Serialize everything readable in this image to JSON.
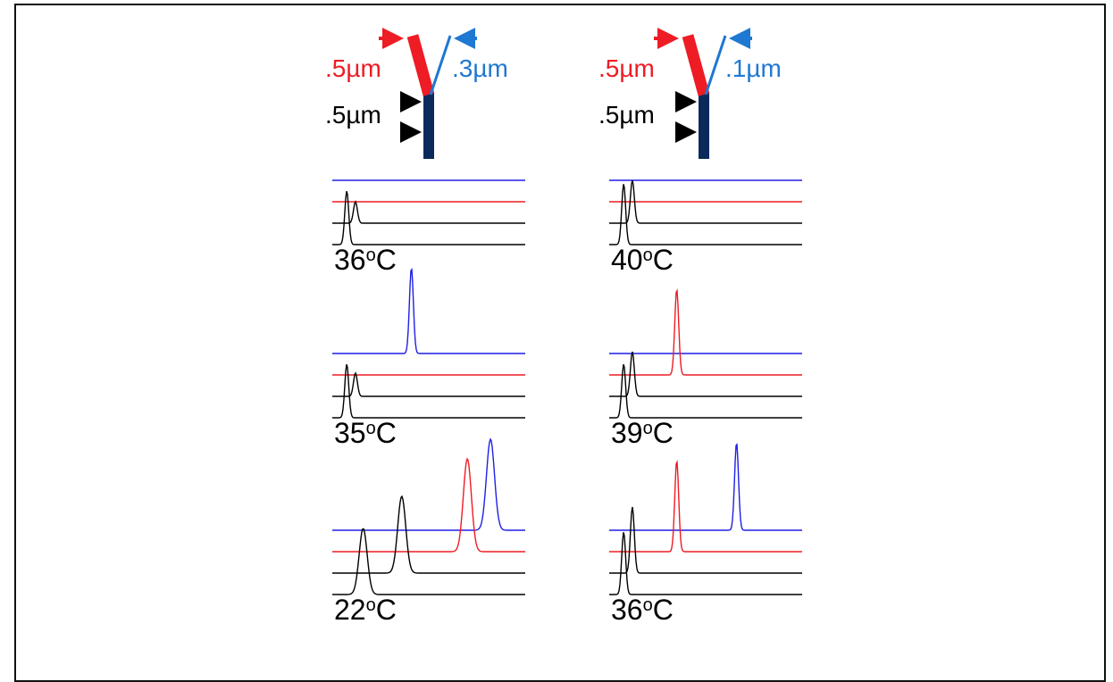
{
  "colors": {
    "red": "#ee1c24",
    "blue_branch": "#1f78d1",
    "blue_trace": "#1f1fe6",
    "black": "#000000",
    "stem": "#0b2a5c"
  },
  "left_column": {
    "schematic": {
      "red_label": ".5µm",
      "blue_label": ".3µm",
      "stem_label": ".5µm"
    },
    "panels": [
      {
        "temp": "36°C",
        "temp_number": "36",
        "temp_unit": "oC",
        "black1_peak": 0.0,
        "black2_peak": 0.12,
        "red_peak": null,
        "blue_peak": null
      },
      {
        "temp": "35°C",
        "temp_number": "35",
        "temp_unit": "oC",
        "black1_peak": 0.0,
        "black2_peak": 0.12,
        "red_peak": null,
        "blue_peak": 0.41
      },
      {
        "temp": "22°C",
        "temp_number": "22",
        "temp_unit": "oC",
        "black1_peak": 0.16,
        "black2_peak": 0.36,
        "red_peak": 0.7,
        "blue_peak": 0.82
      }
    ]
  },
  "right_column": {
    "schematic": {
      "red_label": ".5µm",
      "blue_label": ".1µm",
      "stem_label": ".5µm"
    },
    "panels": [
      {
        "temp": "40°C",
        "temp_number": "40",
        "temp_unit": "oC",
        "black1_peak": 0.0,
        "black2_peak": 0.12,
        "red_peak": null,
        "blue_peak": null
      },
      {
        "temp": "39°C",
        "temp_number": "39",
        "temp_unit": "oC",
        "black1_peak": 0.0,
        "black2_peak": 0.12,
        "red_peak": 0.35,
        "blue_peak": null
      },
      {
        "temp": "36°C",
        "temp_number": "36",
        "temp_unit": "oC",
        "black1_peak": 0.0,
        "black2_peak": 0.12,
        "red_peak": 0.35,
        "blue_peak": 0.66
      }
    ]
  }
}
